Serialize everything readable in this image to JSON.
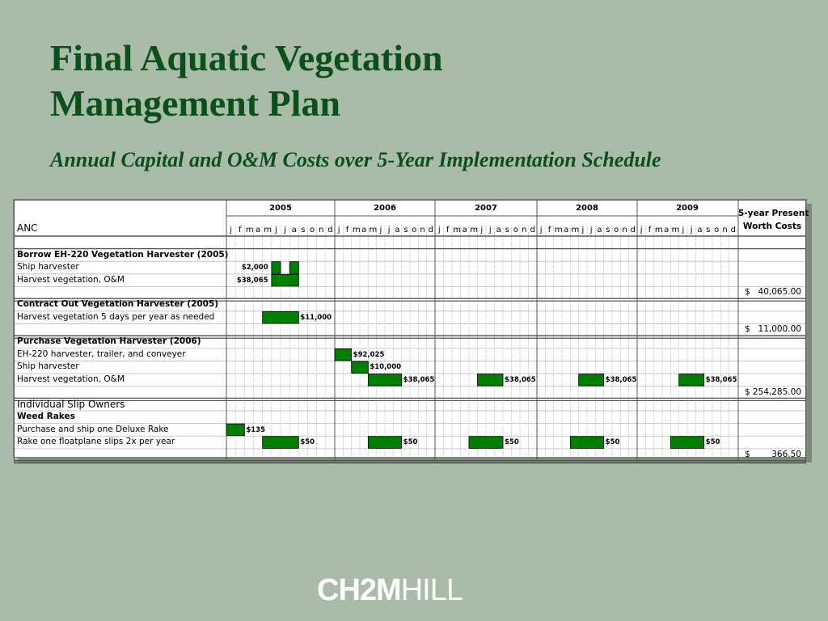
{
  "title_lines": [
    "Final Aquatic Vegetation",
    "Management Plan"
  ],
  "subtitle": "Annual Capital and O&M Costs over 5-Year Implementation Schedule",
  "years": [
    "2005",
    "2006",
    "2007",
    "2008",
    "2009"
  ],
  "months": [
    "j",
    "f",
    "m",
    "a",
    "m",
    "j",
    "j",
    "a",
    "s",
    "o",
    "n",
    "d"
  ],
  "pw_header": [
    "5-year Present",
    "Worth Costs"
  ],
  "anc": "ANC",
  "individual": "Individual Slip Owners",
  "sections": [
    {
      "title": "Borrow EH-220 Vegetation Harvester (2005)",
      "rows": [
        {
          "label": "Ship harvester",
          "tasks": [
            {
              "year": 0,
              "start": 5,
              "end": 6,
              "cost": "$2,000",
              "cost_side": "left"
            },
            {
              "year": 0,
              "start": 7,
              "end": 8,
              "cost": "",
              "cost_side": "right"
            }
          ]
        },
        {
          "label": "Harvest vegetation, O&M",
          "tasks": [
            {
              "year": 0,
              "start": 5,
              "end": 8,
              "cost": "$38,065",
              "cost_side": "left"
            }
          ]
        }
      ],
      "total_symbol": "$",
      "total": "40,065.00"
    },
    {
      "title": "Contract Out Vegetation Harvester (2005)",
      "rows": [
        {
          "label": "Harvest vegetation 5 days per year as needed",
          "tasks": [
            {
              "year": 0,
              "start": 4,
              "end": 8,
              "cost": "$11,000",
              "cost_side": "right"
            }
          ]
        }
      ],
      "total_symbol": "$",
      "total": "11,000.00"
    },
    {
      "title": "Purchase Vegetation Harvester (2006)",
      "rows": [
        {
          "label": "EH-220 harvester, trailer, and conveyer",
          "tasks": [
            {
              "year": 1,
              "start": 0,
              "end": 2,
              "cost": "$92,025",
              "cost_side": "right"
            }
          ]
        },
        {
          "label": "Ship harvester",
          "tasks": [
            {
              "year": 1,
              "start": 2,
              "end": 4,
              "cost": "$10,000",
              "cost_side": "right"
            }
          ]
        },
        {
          "label": "Harvest vegetation, O&M",
          "tasks": [
            {
              "year": 1,
              "start": 4,
              "end": 8,
              "cost": "$38,065",
              "cost_side": "right"
            },
            {
              "year": 2,
              "start": 5,
              "end": 8,
              "cost": "$38,065",
              "cost_side": "right"
            },
            {
              "year": 3,
              "start": 5,
              "end": 8,
              "cost": "$38,065",
              "cost_side": "right"
            },
            {
              "year": 4,
              "start": 5,
              "end": 8,
              "cost": "$38,065",
              "cost_side": "right"
            }
          ]
        }
      ],
      "total_symbol": "$",
      "total": "254,285.00"
    },
    {
      "title": "Weed Rakes",
      "rows": [
        {
          "label": "Purchase and ship one Deluxe Rake",
          "tasks": [
            {
              "year": 0,
              "start": 0,
              "end": 2,
              "cost": "$135",
              "cost_side": "right"
            }
          ]
        },
        {
          "label": "Rake one floatplane slips 2x per year",
          "tasks": [
            {
              "year": 0,
              "start": 4,
              "end": 8,
              "cost": "$50",
              "cost_side": "right"
            },
            {
              "year": 1,
              "start": 4,
              "end": 8,
              "cost": "$50",
              "cost_side": "right"
            },
            {
              "year": 2,
              "start": 4,
              "end": 8,
              "cost": "$50",
              "cost_side": "right"
            },
            {
              "year": 3,
              "start": 4,
              "end": 8,
              "cost": "$50",
              "cost_side": "right"
            },
            {
              "year": 4,
              "start": 4,
              "end": 8,
              "cost": "$50",
              "cost_side": "right"
            }
          ]
        }
      ],
      "total_symbol": "$",
      "total": "366.50"
    }
  ],
  "logo_bold": "CH2M",
  "logo_light": "HILL",
  "colors": {
    "bar": "#008000",
    "title": "#0b4f1b",
    "background": "#a9bca7"
  }
}
